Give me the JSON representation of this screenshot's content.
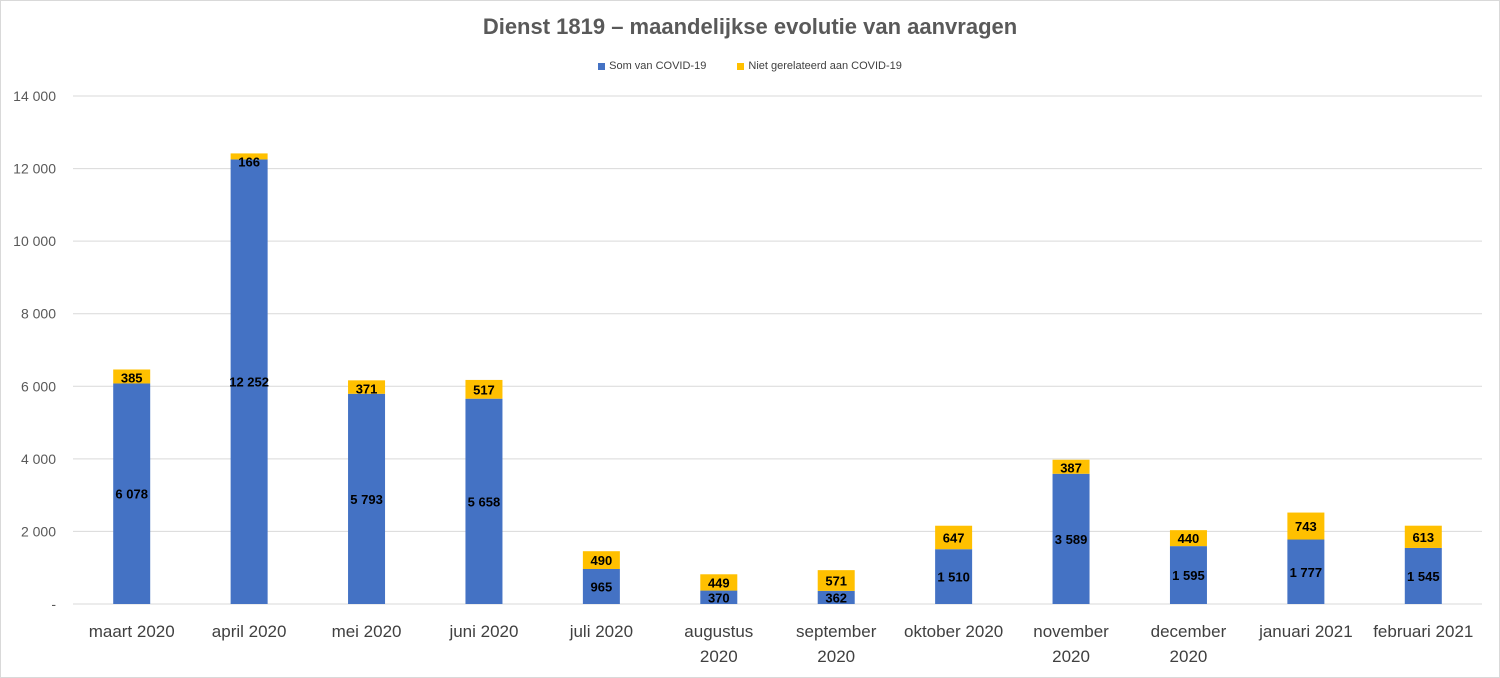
{
  "chart_data": {
    "type": "bar",
    "stacked": true,
    "title": "Dienst 1819 – maandelijkse evolutie van aanvragen",
    "xlabel": "",
    "ylabel": "",
    "ylim": [
      0,
      14000
    ],
    "grid": true,
    "legend_position": "top",
    "y_ticks": [
      "-",
      "2 000",
      "4 000",
      "6 000",
      "8 000",
      "10 000",
      "12 000",
      "14 000"
    ],
    "categories": [
      [
        "maart 2020"
      ],
      [
        "april 2020"
      ],
      [
        "mei 2020"
      ],
      [
        "juni 2020"
      ],
      [
        "juli 2020"
      ],
      [
        "augustus",
        "2020"
      ],
      [
        "september",
        "2020"
      ],
      [
        "oktober 2020"
      ],
      [
        "november",
        "2020"
      ],
      [
        "december",
        "2020"
      ],
      [
        "januari 2021"
      ],
      [
        "februari 2021"
      ]
    ],
    "series": [
      {
        "name": "Som van COVID-19",
        "color": "#4472c4",
        "values": [
          6078,
          12252,
          5793,
          5658,
          965,
          370,
          362,
          1510,
          3589,
          1595,
          1777,
          1545
        ],
        "labels": [
          "6 078",
          "12 252",
          "5 793",
          "5 658",
          "965",
          "370",
          "362",
          "1 510",
          "3 589",
          "1 595",
          "1 777",
          "1 545"
        ]
      },
      {
        "name": "Niet gerelateerd aan COVID-19",
        "color": "#ffc000",
        "values": [
          385,
          166,
          371,
          517,
          490,
          449,
          571,
          647,
          387,
          440,
          743,
          613
        ],
        "labels": [
          "385",
          "166",
          "371",
          "517",
          "490",
          "449",
          "571",
          "647",
          "387",
          "440",
          "743",
          "613"
        ]
      }
    ]
  }
}
